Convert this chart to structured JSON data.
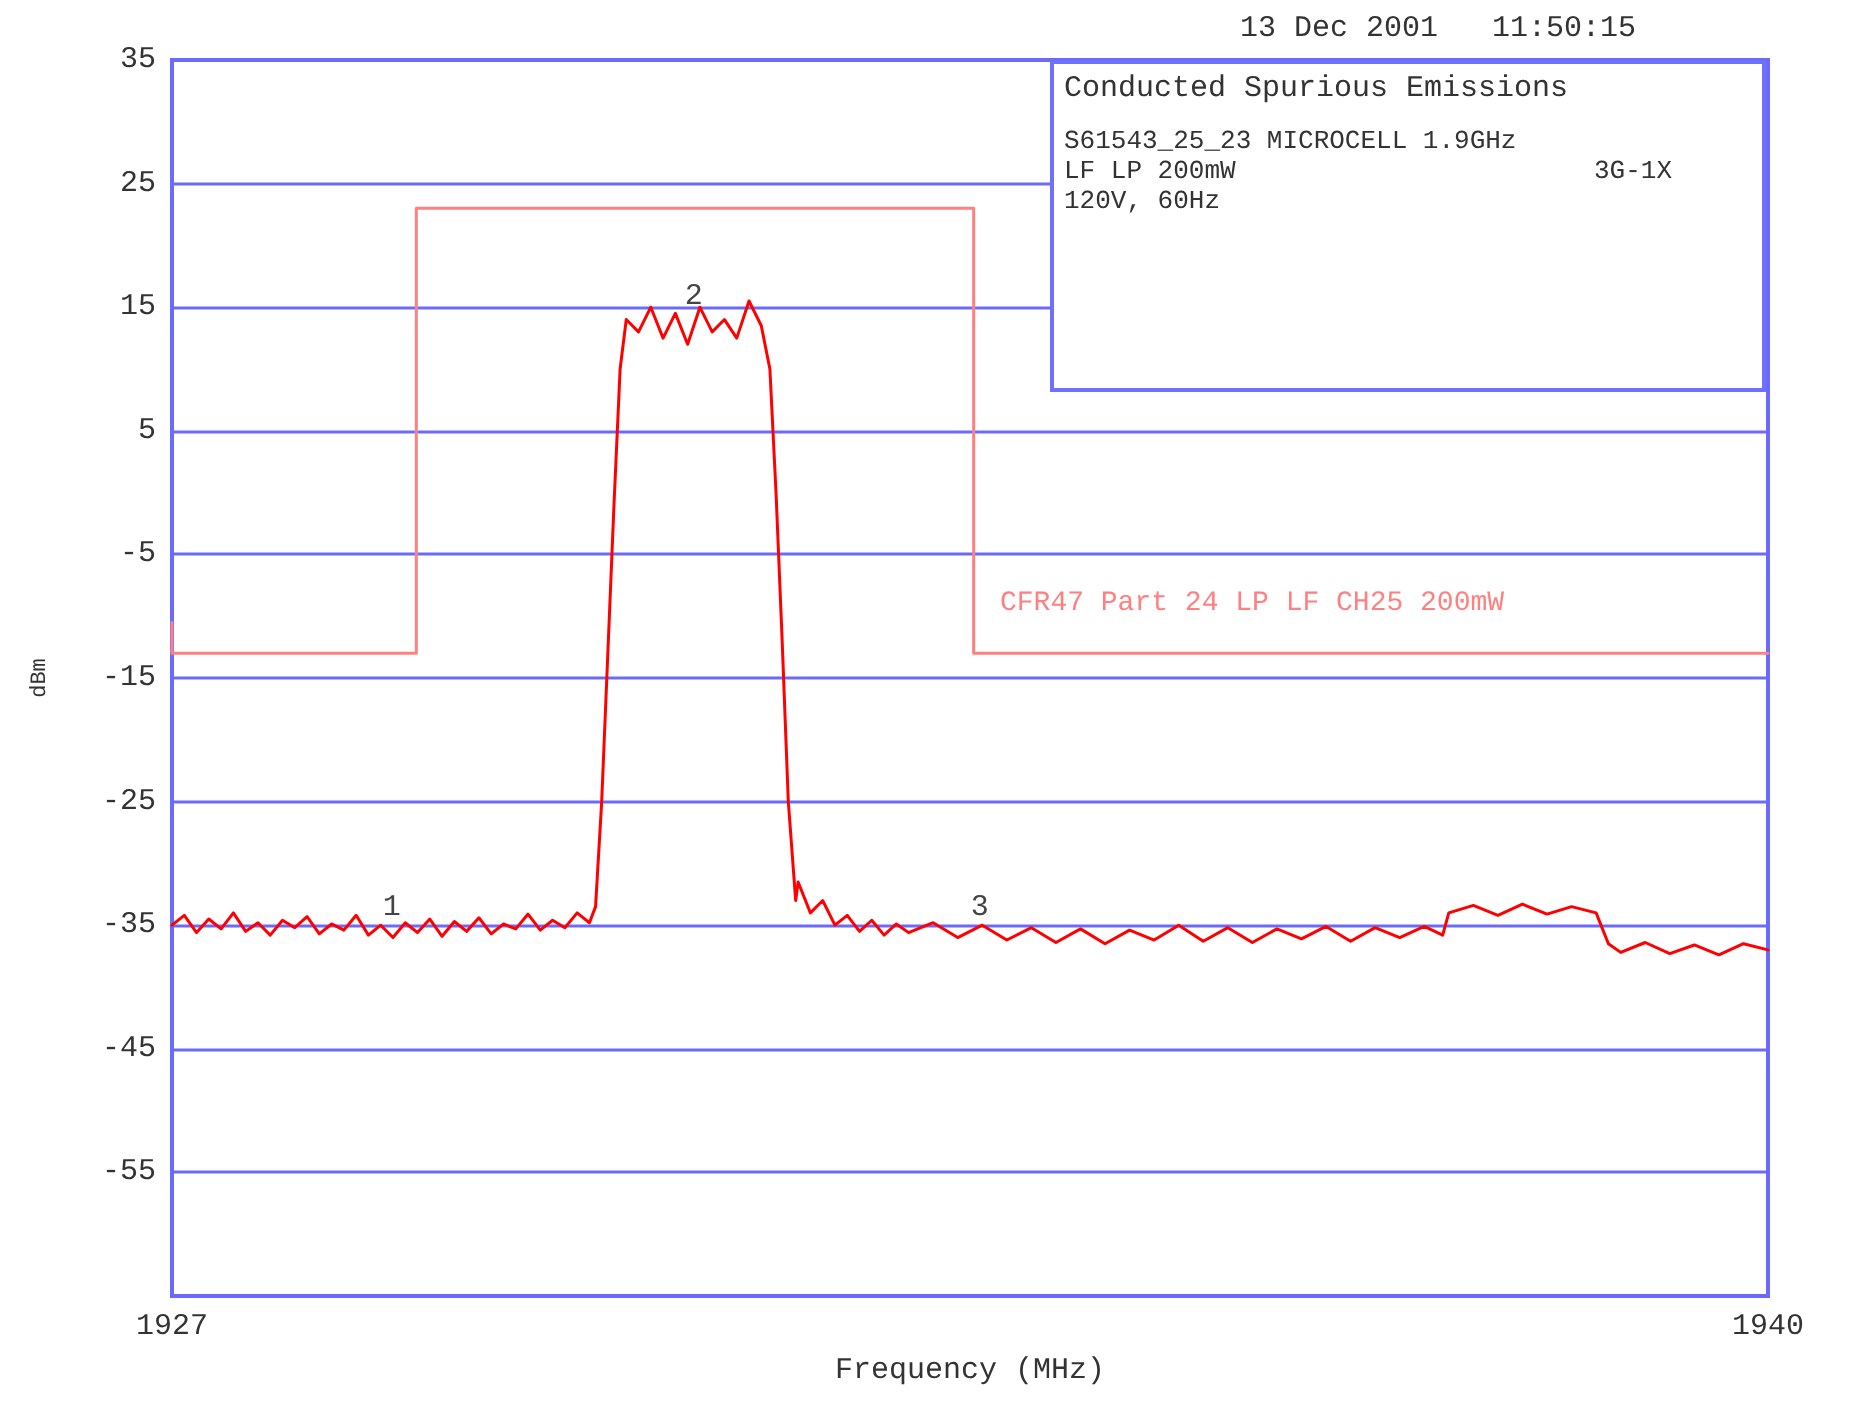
{
  "chart_data": {
    "type": "line",
    "xlabel": "Frequency (MHz)",
    "ylabel": "dBm",
    "xlim": [
      1927,
      1940
    ],
    "xticks": [
      1927,
      1940
    ],
    "ylim": [
      -65,
      35
    ],
    "yticks": [
      35,
      25,
      15,
      5,
      -5,
      -15,
      -25,
      -35,
      -45,
      -55
    ],
    "grid": "y",
    "marker": "none",
    "line_style": "solid",
    "annotations": [
      "13 Dec 2001   11:50:15",
      "Conducted Spurious Emissions",
      "S61543_25_23 MICROCELL 1.9GHz",
      "LF LP 200mW",
      "3G-1X",
      "120V, 60Hz",
      "CFR47 Part 24 LP LF CH25 200mW",
      {
        "text": "1",
        "x": 1928.79,
        "y": -35.5
      },
      {
        "text": "2",
        "x": 1931.25,
        "y": 14
      },
      {
        "text": "3",
        "x": 1933.58,
        "y": -35.5
      }
    ],
    "series": [
      {
        "color": "#ff8080",
        "x": [
          1927,
          1927,
          1928.99,
          1928.99,
          1933.53,
          1933.53,
          1940
        ],
        "values": [
          -10.5,
          -13,
          -13,
          23,
          23,
          -13,
          -13
        ]
      },
      {
        "color": "#ff0000",
        "x": [
          1927,
          1927.1,
          1927.2,
          1927.3,
          1927.4,
          1927.5,
          1927.6,
          1927.7,
          1927.8,
          1927.9,
          1928,
          1928.1,
          1928.2,
          1928.3,
          1928.4,
          1928.5,
          1928.6,
          1928.7,
          1928.8,
          1928.9,
          1929,
          1929.1,
          1929.2,
          1929.3,
          1929.4,
          1929.5,
          1929.6,
          1929.7,
          1929.8,
          1929.9,
          1930,
          1930.1,
          1930.2,
          1930.3,
          1930.4,
          1930.45,
          1930.5,
          1930.55,
          1930.6,
          1930.65,
          1930.7,
          1930.8,
          1930.9,
          1931,
          1931.1,
          1931.2,
          1931.3,
          1931.4,
          1931.5,
          1931.6,
          1931.7,
          1931.8,
          1931.87,
          1931.92,
          1931.97,
          1932.02,
          1932.08,
          1932.1,
          1932.2,
          1932.3,
          1932.4,
          1932.5,
          1932.6,
          1932.7,
          1932.8,
          1932.9,
          1933,
          1933.2,
          1933.4,
          1933.6,
          1933.8,
          1934,
          1934.2,
          1934.4,
          1934.6,
          1934.8,
          1935,
          1935.2,
          1935.4,
          1935.6,
          1935.8,
          1936,
          1936.2,
          1936.4,
          1936.6,
          1936.8,
          1937,
          1937.2,
          1937.35,
          1937.4,
          1937.6,
          1937.8,
          1938,
          1938.2,
          1938.4,
          1938.6,
          1938.7,
          1938.8,
          1939,
          1939.2,
          1939.4,
          1939.6,
          1939.8,
          1940
        ],
        "values": [
          -35,
          -34.2,
          -35.6,
          -34.5,
          -35.3,
          -34,
          -35.5,
          -34.8,
          -35.8,
          -34.6,
          -35.2,
          -34.3,
          -35.7,
          -34.9,
          -35.4,
          -34.2,
          -35.8,
          -35,
          -36,
          -34.8,
          -35.6,
          -34.5,
          -35.9,
          -34.7,
          -35.5,
          -34.4,
          -35.7,
          -34.9,
          -35.3,
          -34.1,
          -35.4,
          -34.6,
          -35.2,
          -34,
          -34.8,
          -33.5,
          -25,
          -13,
          -1,
          10,
          14,
          13,
          15,
          12.5,
          14.5,
          12,
          15,
          13,
          14,
          12.5,
          15.5,
          13.5,
          10,
          0,
          -12,
          -25,
          -33,
          -31.5,
          -34,
          -33,
          -35,
          -34.2,
          -35.5,
          -34.6,
          -35.8,
          -34.9,
          -35.6,
          -34.8,
          -36,
          -35,
          -36.2,
          -35.2,
          -36.4,
          -35.3,
          -36.5,
          -35.4,
          -36.2,
          -35,
          -36.3,
          -35.2,
          -36.4,
          -35.3,
          -36.1,
          -35.1,
          -36.3,
          -35.2,
          -36,
          -35.1,
          -35.8,
          -34,
          -33.4,
          -34.2,
          -33.3,
          -34.1,
          -33.5,
          -34,
          -36.5,
          -37.2,
          -36.4,
          -37.3,
          -36.6,
          -37.4,
          -36.5,
          -37
        ]
      }
    ]
  }
}
